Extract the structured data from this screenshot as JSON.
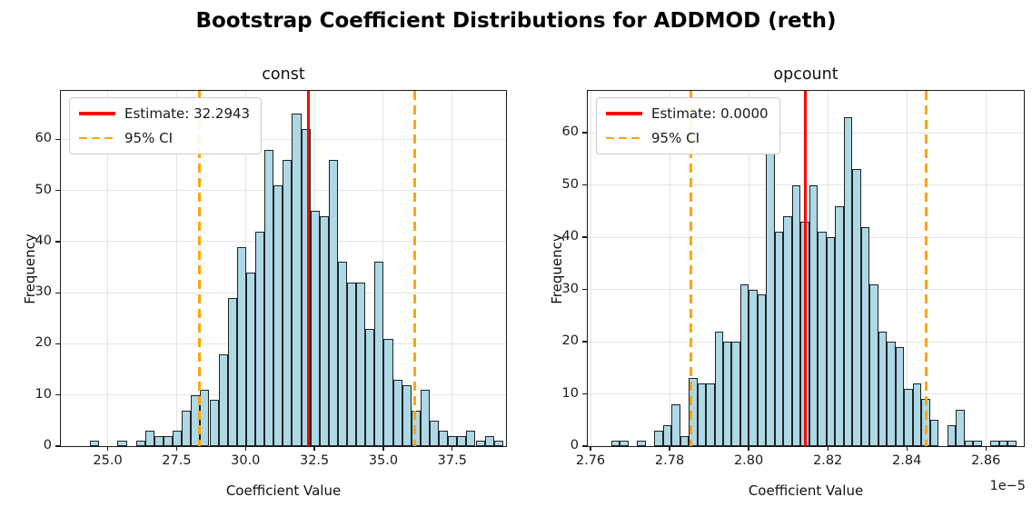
{
  "figure_title": "Bootstrap Coefficient Distributions for ADDMOD (reth)",
  "colors": {
    "bar_fill": "#add8e6",
    "bar_edge": "#222222",
    "estimate_line": "#ff0000",
    "ci_line": "#ffa500",
    "grid": "#e4e4e4"
  },
  "chart_data": [
    {
      "type": "bar",
      "title": "const",
      "xlabel": "Coefficient Value",
      "ylabel": "Frequency",
      "legend": {
        "estimate": "Estimate: 32.2943",
        "ci": "95% CI"
      },
      "legend_position": "upper left",
      "grid": true,
      "estimate_value": 32.2943,
      "ci_values": [
        28.32,
        36.14
      ],
      "bin_start": 24.36,
      "bin_width": 0.333,
      "values": [
        1,
        0,
        0,
        1,
        0,
        1,
        3,
        2,
        2,
        3,
        7,
        10,
        11,
        9,
        18,
        29,
        39,
        34,
        42,
        58,
        51,
        56,
        65,
        62,
        46,
        45,
        56,
        36,
        32,
        32,
        23,
        36,
        21,
        13,
        12,
        7,
        11,
        5,
        3,
        2,
        2,
        3,
        1,
        2,
        1
      ],
      "xlim": [
        23.3,
        39.45
      ],
      "ylim": [
        0,
        69.5
      ],
      "xticks": [
        {
          "value": 25.0,
          "label": "25.0"
        },
        {
          "value": 27.5,
          "label": "27.5"
        },
        {
          "value": 30.0,
          "label": "30.0"
        },
        {
          "value": 32.5,
          "label": "32.5"
        },
        {
          "value": 35.0,
          "label": "35.0"
        },
        {
          "value": 37.5,
          "label": "37.5"
        }
      ],
      "yticks": [
        {
          "value": 0,
          "label": "0"
        },
        {
          "value": 10,
          "label": "10"
        },
        {
          "value": 20,
          "label": "20"
        },
        {
          "value": 30,
          "label": "30"
        },
        {
          "value": 40,
          "label": "40"
        },
        {
          "value": 50,
          "label": "50"
        },
        {
          "value": 60,
          "label": "60"
        }
      ],
      "x_offset_label": ""
    },
    {
      "type": "bar",
      "title": "opcount",
      "xlabel": "Coefficient Value",
      "ylabel": "Frequency",
      "legend": {
        "estimate": "Estimate: 0.0000",
        "ci": "95% CI"
      },
      "legend_position": "upper left",
      "grid": true,
      "estimate_value": 2.8143,
      "ci_values": [
        2.7854,
        2.8449
      ],
      "bin_start": 2.7652,
      "bin_width": 0.00218,
      "values": [
        1,
        1,
        0,
        1,
        0,
        3,
        4,
        8,
        2,
        13,
        12,
        12,
        22,
        20,
        20,
        31,
        30,
        29,
        56,
        41,
        44,
        50,
        43,
        50,
        41,
        40,
        46,
        63,
        53,
        42,
        31,
        22,
        20,
        19,
        11,
        12,
        9,
        5,
        0,
        4,
        7,
        1,
        1,
        0,
        1,
        1,
        1
      ],
      "xlim": [
        2.7593,
        2.8696
      ],
      "ylim": [
        0,
        68
      ],
      "xticks": [
        {
          "value": 2.76,
          "label": "2.76"
        },
        {
          "value": 2.78,
          "label": "2.78"
        },
        {
          "value": 2.8,
          "label": "2.80"
        },
        {
          "value": 2.82,
          "label": "2.82"
        },
        {
          "value": 2.84,
          "label": "2.84"
        },
        {
          "value": 2.86,
          "label": "2.86"
        }
      ],
      "yticks": [
        {
          "value": 0,
          "label": "0"
        },
        {
          "value": 10,
          "label": "10"
        },
        {
          "value": 20,
          "label": "20"
        },
        {
          "value": 30,
          "label": "30"
        },
        {
          "value": 40,
          "label": "40"
        },
        {
          "value": 50,
          "label": "50"
        },
        {
          "value": 60,
          "label": "60"
        }
      ],
      "x_offset_label": "1e−5"
    }
  ]
}
